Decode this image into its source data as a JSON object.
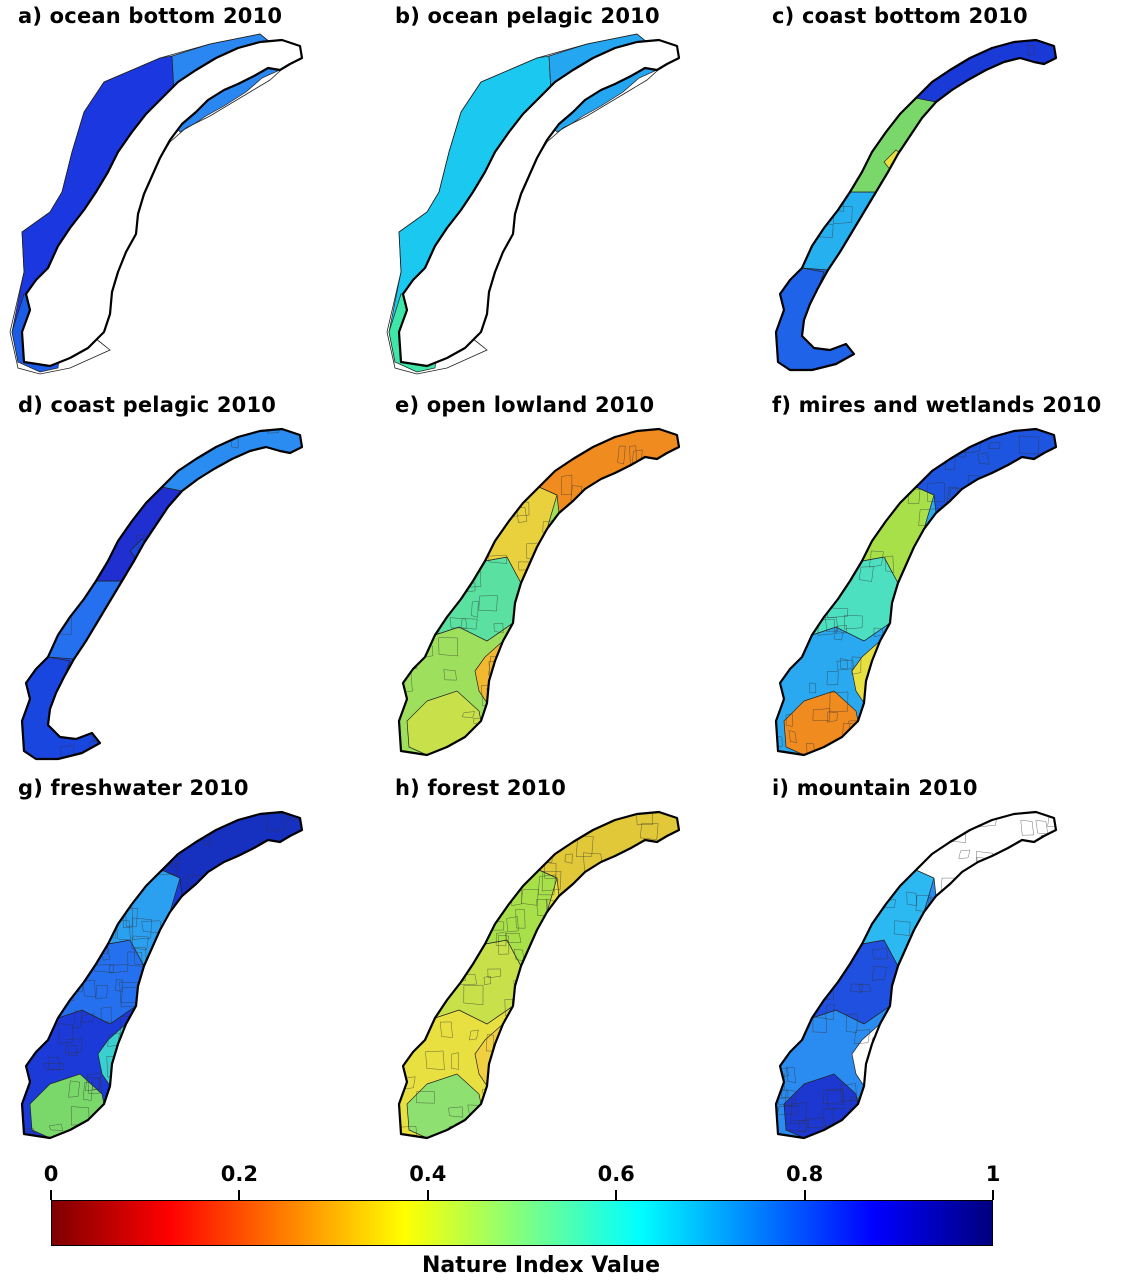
{
  "panels": [
    {
      "title": "a) ocean bottom 2010",
      "kind": "ocean",
      "colors": [
        "#1a37e0",
        "#2a86f0",
        "#1c5de8"
      ]
    },
    {
      "title": "b) ocean pelagic 2010",
      "kind": "ocean",
      "colors": [
        "#1bc8f0",
        "#25a6f0",
        "#3ee6a8"
      ]
    },
    {
      "title": "c) coast bottom 2010",
      "kind": "coast",
      "colors": [
        "#1e63e8",
        "#27b0f0",
        "#7ad86a",
        "#1a3ad8",
        "#e8e040"
      ]
    },
    {
      "title": "d) coast pelagic 2010",
      "kind": "coast",
      "colors": [
        "#1a46e0",
        "#2470ee",
        "#1f2fd0",
        "#2a8cf0"
      ]
    },
    {
      "title": "e) open lowland 2010",
      "kind": "land",
      "colors": [
        "#9ee05e",
        "#5ae0a0",
        "#e8d13c",
        "#f08b20",
        "#c8e04a",
        "#f2b830"
      ]
    },
    {
      "title": "f) mires and wetlands 2010",
      "kind": "land",
      "colors": [
        "#2aa8f0",
        "#4ce0c0",
        "#a8e04a",
        "#1d54e0",
        "#f08b20",
        "#e8e040"
      ]
    },
    {
      "title": "g) freshwater 2010",
      "kind": "land",
      "colors": [
        "#1c3ad8",
        "#2470ee",
        "#2ca0f0",
        "#1630c0",
        "#7ad86a",
        "#3bd0d0"
      ]
    },
    {
      "title": "h) forest 2010",
      "kind": "land",
      "colors": [
        "#e8e040",
        "#c8e04a",
        "#a8e04a",
        "#e0c838",
        "#8ee070",
        "#f0d040"
      ]
    },
    {
      "title": "i) mountain 2010",
      "kind": "land",
      "colors": [
        "#2a8cf0",
        "#1f50e0",
        "#2cb8f0",
        "#ffffff",
        "#1c38d0",
        "#ffffff"
      ]
    }
  ],
  "legend": {
    "title": "Nature Index Value",
    "ticks": [
      "0",
      "0.2",
      "0.4",
      "0.6",
      "0.8",
      "1"
    ],
    "tick_values": [
      0,
      0.2,
      0.4,
      0.6,
      0.8,
      1
    ],
    "colormap": [
      "#7f0000",
      "#ff0000",
      "#ff8000",
      "#ffff00",
      "#80ff80",
      "#00ffff",
      "#0080ff",
      "#0000ff",
      "#00007f"
    ]
  }
}
